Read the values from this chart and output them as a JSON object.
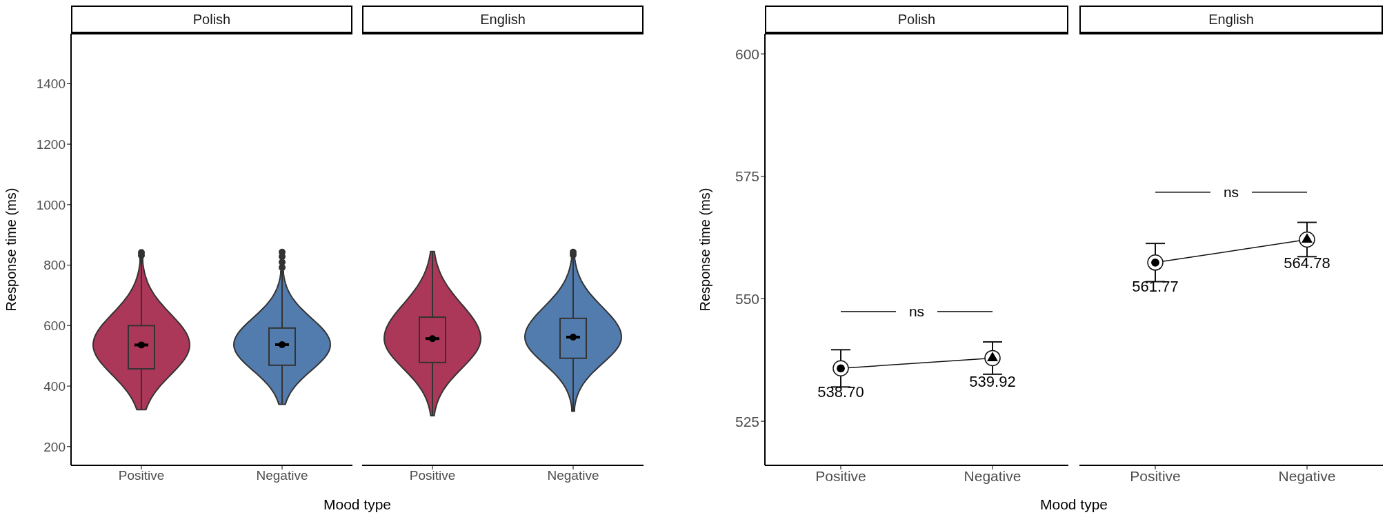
{
  "chart_data": [
    {
      "type": "box",
      "title": "Polish",
      "ylabel": "Response time (ms)",
      "xlabel": "Mood type",
      "categories": [
        "Positive",
        "Negative"
      ],
      "colors": [
        "#ab3759",
        "#527cae"
      ],
      "ylim": [
        138,
        1565
      ],
      "yticks": [
        200,
        400,
        600,
        800,
        1000,
        1200,
        1400
      ],
      "boxes": [
        {
          "low": 322,
          "q1": 457,
          "median": 536,
          "mean": 536,
          "q3": 600,
          "high": 826,
          "outliers": [
            832,
            842
          ]
        },
        {
          "low": 340,
          "q1": 469,
          "median": 537,
          "mean": 537,
          "q3": 592,
          "high": 780,
          "outliers": [
            792,
            810,
            828,
            843
          ]
        }
      ]
    },
    {
      "type": "box",
      "title": "English",
      "categories": [
        "Positive",
        "Negative"
      ],
      "colors": [
        "#ab3759",
        "#527cae"
      ],
      "ylim": [
        138,
        1565
      ],
      "yticks": [
        200,
        400,
        600,
        800,
        1000,
        1200,
        1400
      ],
      "tick_labels": "x",
      "boxes": [
        {
          "low": 302,
          "q1": 478,
          "median": 557,
          "mean": 557,
          "q3": 628,
          "high": 845
        },
        {
          "low": 317,
          "q1": 492,
          "median": 562,
          "mean": 562,
          "q3": 624,
          "high": 826,
          "outliers": [
            834,
            843
          ]
        }
      ]
    },
    {
      "type": "line",
      "title": "Polish",
      "ylabel": "Response time (ms)",
      "xlabel": "Mood type",
      "categories": [
        "Positive",
        "Negative"
      ],
      "ylim": [
        516,
        604.1
      ],
      "yticks": [
        525,
        550,
        575,
        600
      ],
      "series": [
        {
          "type": "line",
          "color": "#111111",
          "marker": "circle",
          "values": [
            535.8,
            537.9
          ],
          "errors": [
            3.8,
            3.3
          ]
        },
        {
          "type": "scatter",
          "color": "#000000",
          "marker": "circle",
          "values": [
            535.8,
            null
          ]
        },
        {
          "type": "scatter",
          "color": "#000000",
          "marker": "triangle",
          "values": [
            null,
            537.9
          ]
        }
      ],
      "annotations": [
        "ns",
        {
          "text": "538.70",
          "x": "Positive",
          "y": 535.8
        },
        {
          "text": "539.92",
          "x": "Negative",
          "y": 537.9
        }
      ]
    },
    {
      "type": "line",
      "title": "English",
      "categories": [
        "Positive",
        "Negative"
      ],
      "ylim": [
        516,
        604.1
      ],
      "yticks": [
        525,
        550,
        575,
        600
      ],
      "tick_labels": "x",
      "series": [
        {
          "type": "line",
          "color": "#111111",
          "marker": "circle",
          "values": [
            557.4,
            562.1
          ],
          "errors": [
            3.9,
            3.5
          ]
        },
        {
          "type": "scatter",
          "color": "#000000",
          "marker": "circle",
          "values": [
            557.4,
            null
          ]
        },
        {
          "type": "scatter",
          "color": "#000000",
          "marker": "triangle",
          "values": [
            null,
            562.1
          ]
        }
      ],
      "annotations": [
        "ns",
        {
          "text": "561.77",
          "x": "Positive",
          "y": 557.4
        },
        {
          "text": "564.78",
          "x": "Negative",
          "y": 562.1
        }
      ]
    }
  ]
}
